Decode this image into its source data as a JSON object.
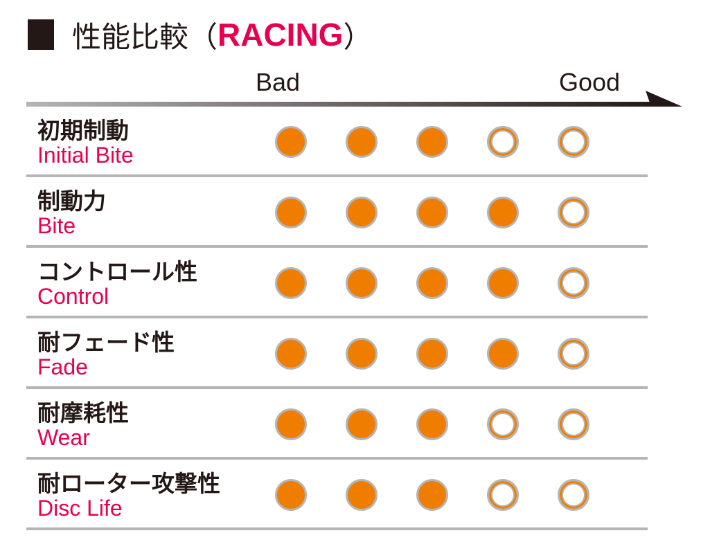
{
  "title": {
    "prefix": "性能比較（",
    "highlight": "RACING",
    "suffix": "）"
  },
  "colors": {
    "filled": "#ef7d00",
    "empty_ring": "#ef7d00",
    "border": "#b5b5b6",
    "english_label": "#e5004f",
    "highlight": "#e5004f"
  },
  "chart_data": {
    "type": "table",
    "scale_min_label": "Bad",
    "scale_max_label": "Good",
    "max": 5,
    "rows": [
      {
        "jp": "初期制動",
        "en": "Initial Bite",
        "value": 3
      },
      {
        "jp": "制動力",
        "en": "Bite",
        "value": 4
      },
      {
        "jp": "コントロール性",
        "en": "Control",
        "value": 4
      },
      {
        "jp": "耐フェード性",
        "en": "Fade",
        "value": 4
      },
      {
        "jp": "耐摩耗性",
        "en": "Wear",
        "value": 3
      },
      {
        "jp": "耐ローター攻撃性",
        "en": "Disc Life",
        "value": 3
      }
    ]
  }
}
